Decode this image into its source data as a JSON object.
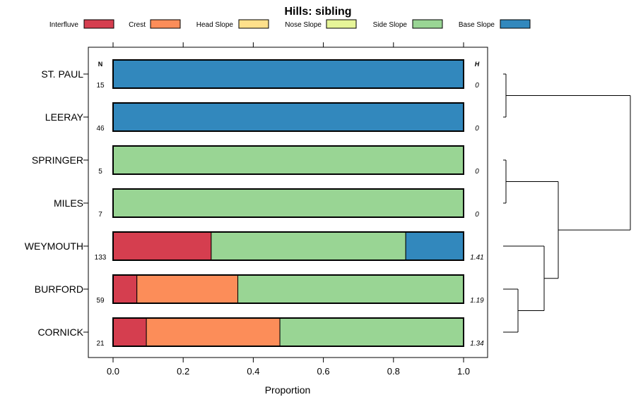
{
  "chart_data": {
    "type": "bar",
    "orientation": "horizontal",
    "stacked": true,
    "title": "Hills: sibling",
    "xlabel": "Proportion",
    "xlim": [
      -0.07,
      1.07
    ],
    "xticks": [
      0.0,
      0.2,
      0.4,
      0.6,
      0.8,
      1.0
    ],
    "xtick_labels": [
      "0.0",
      "0.2",
      "0.4",
      "0.6",
      "0.8",
      "1.0"
    ],
    "n_header": "N",
    "h_header": "H",
    "legend": [
      {
        "name": "Interfluve",
        "color": "#D53E4F"
      },
      {
        "name": "Crest",
        "color": "#FC8D59"
      },
      {
        "name": "Head Slope",
        "color": "#FEE08B"
      },
      {
        "name": "Nose Slope",
        "color": "#E6F598"
      },
      {
        "name": "Side Slope",
        "color": "#99D594"
      },
      {
        "name": "Base Slope",
        "color": "#3288BD"
      }
    ],
    "categories": [
      "ST. PAUL",
      "LEERAY",
      "SPRINGER",
      "MILES",
      "WEYMOUTH",
      "BURFORD",
      "CORNICK"
    ],
    "n": [
      "15",
      "46",
      "5",
      "7",
      "133",
      "59",
      "21"
    ],
    "h": [
      "0",
      "0",
      "0",
      "0",
      "1.41",
      "1.19",
      "1.34"
    ],
    "series": [
      {
        "name": "Interfluve",
        "values": [
          0,
          0,
          0,
          0,
          0.28,
          0.068,
          0.095
        ]
      },
      {
        "name": "Crest",
        "values": [
          0,
          0,
          0,
          0,
          0,
          0.288,
          0.381
        ]
      },
      {
        "name": "Head Slope",
        "values": [
          0,
          0,
          0,
          0,
          0,
          0,
          0
        ]
      },
      {
        "name": "Nose Slope",
        "values": [
          0,
          0,
          0,
          0,
          0,
          0,
          0
        ]
      },
      {
        "name": "Side Slope",
        "values": [
          0,
          0,
          1,
          1,
          0.555,
          0.644,
          0.524
        ]
      },
      {
        "name": "Base Slope",
        "values": [
          1,
          1,
          0,
          0,
          0.165,
          0,
          0
        ]
      }
    ],
    "dendrogram": "hierarchical clustering of series"
  }
}
